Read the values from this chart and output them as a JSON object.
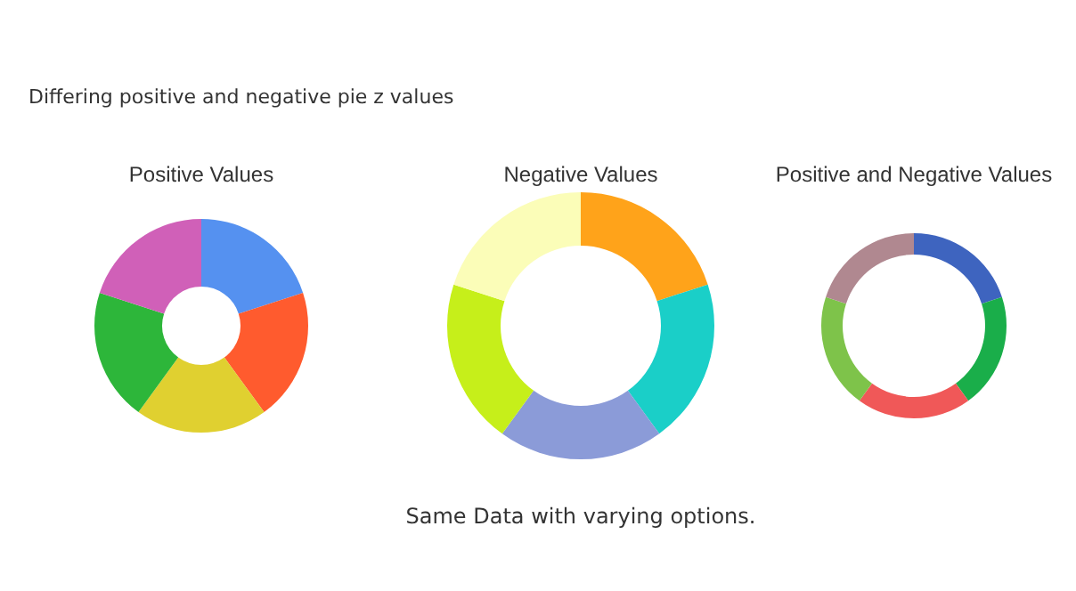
{
  "chart_data": [
    {
      "type": "donut",
      "title": "Positive Values",
      "categories": [
        null,
        null,
        null,
        null,
        null
      ],
      "values": [
        20,
        20,
        20,
        20,
        20
      ],
      "colors": [
        "#5591f0",
        "#ff5b2e",
        "#e0d030",
        "#2db63a",
        "#d060b8"
      ],
      "annotations": [
        "Differing positive and negative pie z values",
        "Same Data with varying options."
      ]
    },
    {
      "type": "donut",
      "title": "Negative Values",
      "categories": [
        null,
        null,
        null,
        null,
        null
      ],
      "values": [
        20,
        20,
        20,
        20,
        20
      ],
      "colors": [
        "#ffa31a",
        "#1acfc8",
        "#8b9bd8",
        "#c6ef1a",
        "#fbfdb8"
      ]
    },
    {
      "type": "donut",
      "title": "Positive and Negative Values",
      "categories": [
        null,
        null,
        null,
        null,
        null
      ],
      "values": [
        20,
        20,
        20,
        20,
        20
      ],
      "colors": [
        "#3e64bf",
        "#1aae4a",
        "#f05858",
        "#7ec34a",
        "#b08890"
      ]
    }
  ]
}
